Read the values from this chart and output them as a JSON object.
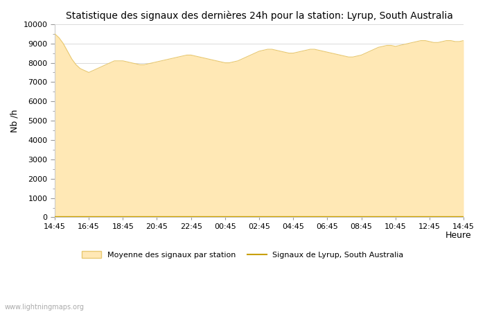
{
  "title": "Statistique des signaux des dernières 24h pour la station: Lyrup, South Australia",
  "xlabel": "Heure",
  "ylabel": "Nb /h",
  "ylim": [
    0,
    10000
  ],
  "yticks": [
    0,
    1000,
    2000,
    3000,
    4000,
    5000,
    6000,
    7000,
    8000,
    9000,
    10000
  ],
  "xtick_labels": [
    "14:45",
    "16:45",
    "18:45",
    "20:45",
    "22:45",
    "00:45",
    "02:45",
    "04:45",
    "06:45",
    "08:45",
    "10:45",
    "12:45",
    "14:45"
  ],
  "background_color": "#ffffff",
  "fill_color": "#FFE8B5",
  "fill_edge_color": "#E8C870",
  "line_color": "#C8A000",
  "station_line_color": "#C8A000",
  "watermark": "www.lightningmaps.org",
  "legend_fill_label": "Moyenne des signaux par station",
  "legend_line_label": "Signaux de Lyrup, South Australia",
  "avg_data": [
    9500,
    9300,
    9000,
    8600,
    8200,
    7900,
    7700,
    7600,
    7500,
    7600,
    7700,
    7800,
    7900,
    8000,
    8100,
    8100,
    8100,
    8050,
    8000,
    7950,
    7900,
    7900,
    7950,
    8000,
    8050,
    8100,
    8150,
    8200,
    8250,
    8300,
    8350,
    8400,
    8400,
    8350,
    8300,
    8250,
    8200,
    8150,
    8100,
    8050,
    8000,
    8000,
    8050,
    8100,
    8200,
    8300,
    8400,
    8500,
    8600,
    8650,
    8700,
    8700,
    8650,
    8600,
    8550,
    8500,
    8500,
    8550,
    8600,
    8650,
    8700,
    8700,
    8650,
    8600,
    8550,
    8500,
    8450,
    8400,
    8350,
    8300,
    8300,
    8350,
    8400,
    8500,
    8600,
    8700,
    8800,
    8850,
    8900,
    8900,
    8850,
    8900,
    8950,
    9000,
    9050,
    9100,
    9150,
    9150,
    9100,
    9050,
    9050,
    9100,
    9150,
    9150,
    9100,
    9100,
    9150
  ],
  "station_data": [
    50,
    50,
    50,
    50,
    50,
    50,
    50,
    50,
    50,
    50,
    50,
    50,
    50,
    50,
    50,
    50,
    50,
    50,
    50,
    50,
    50,
    50,
    50,
    50,
    50,
    50,
    50,
    50,
    50,
    50,
    50,
    50,
    50,
    50,
    50,
    50,
    50,
    50,
    50,
    50,
    50,
    50,
    50,
    50,
    50,
    50,
    50,
    50,
    50,
    50,
    50,
    50,
    50,
    50,
    50,
    50,
    50,
    50,
    50,
    50,
    50,
    50,
    50,
    50,
    50,
    50,
    50,
    50,
    50,
    50,
    50,
    50,
    50,
    50,
    50,
    50,
    50,
    50,
    50,
    50,
    50,
    50,
    50,
    50,
    50,
    50,
    50,
    50,
    50,
    50,
    50,
    50,
    50,
    50,
    50,
    50,
    50
  ]
}
